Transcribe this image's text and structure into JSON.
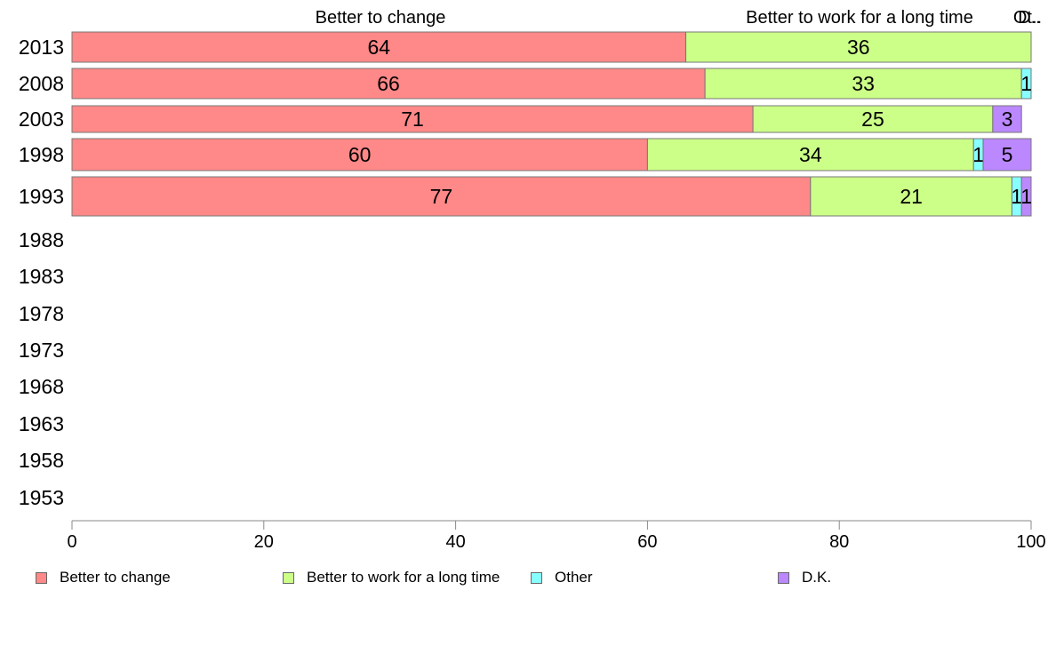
{
  "chart_data": {
    "type": "bar",
    "orientation": "horizontal",
    "stacked": true,
    "categories": [
      "2013",
      "2008",
      "2003",
      "1998",
      "1993",
      "1988",
      "1983",
      "1978",
      "1973",
      "1968",
      "1963",
      "1958",
      "1953"
    ],
    "series": [
      {
        "name": "Better to change",
        "color": "#FF8888",
        "values": [
          64,
          66,
          71,
          60,
          77,
          null,
          null,
          null,
          null,
          null,
          null,
          null,
          null
        ]
      },
      {
        "name": "Better to work for a long time",
        "color": "#CCFF88",
        "values": [
          36,
          33,
          25,
          34,
          21,
          null,
          null,
          null,
          null,
          null,
          null,
          null,
          null
        ]
      },
      {
        "name": "Other",
        "color": "#88FFFF",
        "values": [
          0,
          1,
          0,
          1,
          1,
          null,
          null,
          null,
          null,
          null,
          null,
          null,
          null
        ]
      },
      {
        "name": "D.K.",
        "color": "#BB88FF",
        "values": [
          0,
          0,
          3,
          5,
          1,
          null,
          null,
          null,
          null,
          null,
          null,
          null,
          null
        ]
      }
    ],
    "top_labels": [
      "Better to change",
      "Better to work for a long time",
      "Ot..",
      "D.."
    ],
    "xlim": [
      0,
      100
    ],
    "xticks": [
      "0",
      "20",
      "40",
      "60",
      "80",
      "100"
    ],
    "grid": false,
    "legend": "bottom"
  }
}
